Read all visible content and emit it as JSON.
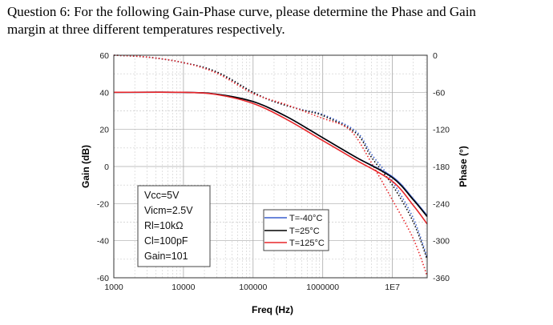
{
  "question": {
    "line1": "Question 6: For the following Gain-Phase curve, please determine the Phase and Gain",
    "line2": "margin at three different temperatures respectively."
  },
  "chart_data": {
    "type": "line",
    "xlabel": "Freq (Hz)",
    "ylabel": "Gain (dB)",
    "y2label": "Phase (°)",
    "xscale": "log",
    "xlim": [
      1000,
      31600000
    ],
    "ylim": [
      -60,
      60
    ],
    "y2lim": [
      -360,
      0
    ],
    "xticks": [
      {
        "v": 1000,
        "label": "1000"
      },
      {
        "v": 10000,
        "label": "10000"
      },
      {
        "v": 100000,
        "label": "100000"
      },
      {
        "v": 1000000,
        "label": "1000000"
      },
      {
        "v": 10000000,
        "label": "1E7"
      }
    ],
    "yticks": [
      "60",
      "40",
      "20",
      "0",
      "-20",
      "-40",
      "-60"
    ],
    "y2ticks": [
      "0",
      "-60",
      "-120",
      "-180",
      "-240",
      "-300",
      "-360"
    ],
    "grid": true,
    "annotation": [
      "Vcc=5V",
      "Vicm=2.5V",
      "Rl=10kΩ",
      "Cl=100pF",
      "Gain=101"
    ],
    "legend_position": "bottom-center",
    "series": [
      {
        "name": "T=-40°C",
        "color": "#3a5fcd",
        "gain": {
          "x": [
            1000,
            10000,
            30000,
            100000,
            300000,
            1000000,
            3000000,
            10000000,
            20000000,
            31600000
          ],
          "y": [
            40,
            40,
            39,
            35,
            27,
            15.5,
            5,
            -5.5,
            -17.5,
            -26.5
          ]
        },
        "phase": {
          "x": [
            1000,
            3000,
            10000,
            30000,
            100000,
            200000,
            500000,
            1000000,
            3000000,
            5000000,
            10000000,
            20000000,
            31600000
          ],
          "y": [
            0,
            -3,
            -12,
            -27,
            -60,
            -75,
            -88,
            -96,
            -123,
            -160,
            -204,
            -264,
            -327
          ]
        }
      },
      {
        "name": "T=25°C",
        "color": "#000000",
        "gain": {
          "x": [
            1000,
            10000,
            30000,
            100000,
            300000,
            1000000,
            3000000,
            10000000,
            20000000,
            31600000
          ],
          "y": [
            40,
            40,
            39,
            35,
            27,
            15.5,
            5,
            -6,
            -18,
            -27
          ]
        },
        "phase": {
          "x": [
            1000,
            3000,
            10000,
            30000,
            100000,
            200000,
            500000,
            1000000,
            3000000,
            5000000,
            10000000,
            20000000,
            31600000
          ],
          "y": [
            0,
            -3,
            -12,
            -27,
            -60,
            -75,
            -88.5,
            -97.5,
            -126,
            -165,
            -210,
            -270,
            -330
          ]
        }
      },
      {
        "name": "T=125°C",
        "color": "#e8262a",
        "gain": {
          "x": [
            1000,
            10000,
            30000,
            100000,
            300000,
            1000000,
            3000000,
            10000000,
            20000000,
            31600000
          ],
          "y": [
            40,
            40,
            38.8,
            34,
            25.5,
            14,
            3.5,
            -8,
            -21,
            -31
          ]
        },
        "phase": {
          "x": [
            1000,
            3000,
            10000,
            30000,
            100000,
            300000,
            1000000,
            2000000,
            3000000,
            5000000,
            10000000,
            20000000,
            31600000
          ],
          "y": [
            0,
            -3,
            -12,
            -29,
            -62,
            -80,
            -102,
            -114,
            -132,
            -174,
            -234,
            -297,
            -357
          ]
        }
      }
    ]
  }
}
